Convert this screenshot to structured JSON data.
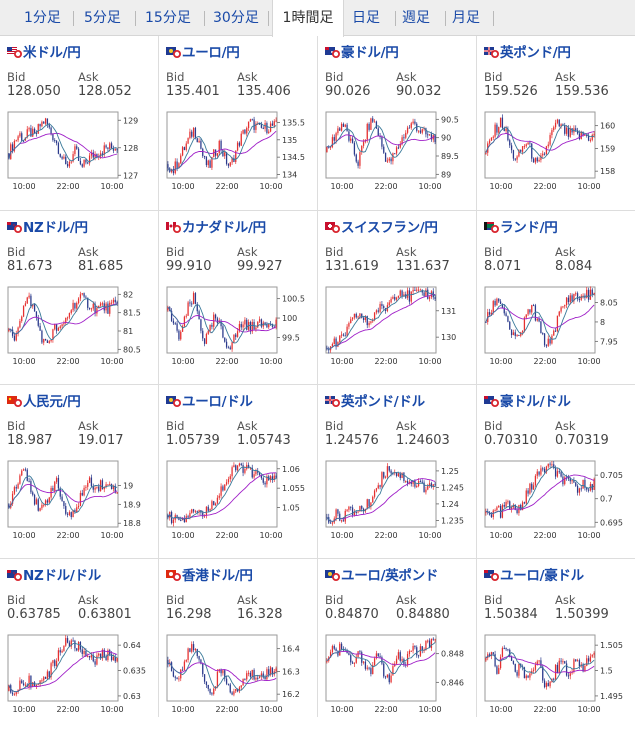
{
  "tabs": [
    {
      "label": "1分足",
      "active": false
    },
    {
      "label": "5分足",
      "active": false
    },
    {
      "label": "15分足",
      "active": false
    },
    {
      "label": "30分足",
      "active": false
    },
    {
      "label": "1時間足",
      "active": true
    },
    {
      "label": "日足",
      "active": false
    },
    {
      "label": "週足",
      "active": false
    },
    {
      "label": "月足",
      "active": false
    }
  ],
  "labels": {
    "bid": "Bid",
    "ask": "Ask"
  },
  "pairs": [
    {
      "name": "米ドル/円",
      "bid": "128.050",
      "ask": "128.052",
      "flag": "us-flag-icon",
      "chart_data": {
        "type": "candlestick",
        "yticks": [
          "129",
          "128",
          "127"
        ],
        "ylim": [
          126.9,
          129.3
        ],
        "xticks": [
          "10:00",
          "22:00",
          "10:00"
        ],
        "close": [
          127.8,
          128.2,
          128.5,
          128.3,
          128.6,
          128.4,
          128.8,
          129.0,
          128.6,
          128.3,
          127.8,
          127.3,
          127.6,
          127.9,
          127.2,
          127.5,
          127.7,
          127.8,
          127.9,
          128.0,
          128.0,
          128.05
        ]
      }
    },
    {
      "name": "ユーロ/円",
      "bid": "135.401",
      "ask": "135.406",
      "flag": "eu-flag-icon",
      "chart_data": {
        "type": "candlestick",
        "yticks": [
          "135.5",
          "135",
          "134.5",
          "134"
        ],
        "ylim": [
          133.9,
          135.8
        ],
        "xticks": [
          "10:00",
          "22:00",
          "10:00"
        ],
        "close": [
          134.3,
          134.1,
          134.4,
          134.7,
          135.0,
          135.3,
          135.0,
          134.4,
          134.2,
          134.6,
          134.9,
          134.5,
          134.2,
          134.6,
          135.0,
          135.3,
          135.5,
          135.4,
          135.3,
          135.35,
          135.4,
          135.4
        ]
      }
    },
    {
      "name": "豪ドル/円",
      "bid": "90.026",
      "ask": "90.032",
      "flag": "au-flag-icon",
      "chart_data": {
        "type": "candlestick",
        "yticks": [
          "90.5",
          "90",
          "89.5",
          "89"
        ],
        "ylim": [
          88.9,
          90.7
        ],
        "xticks": [
          "10:00",
          "22:00",
          "10:00"
        ],
        "close": [
          89.6,
          89.9,
          90.2,
          90.4,
          90.1,
          89.7,
          89.3,
          89.8,
          90.3,
          90.5,
          90.1,
          89.6,
          89.3,
          89.5,
          89.8,
          90.1,
          90.3,
          90.4,
          90.2,
          90.1,
          90.0,
          90.03
        ]
      }
    },
    {
      "name": "英ポンド/円",
      "bid": "159.526",
      "ask": "159.536",
      "flag": "gb-flag-icon",
      "chart_data": {
        "type": "candlestick",
        "yticks": [
          "160",
          "159",
          "158"
        ],
        "ylim": [
          157.7,
          160.6
        ],
        "xticks": [
          "10:00",
          "22:00",
          "10:00"
        ],
        "close": [
          158.8,
          159.4,
          159.9,
          160.2,
          159.6,
          158.8,
          158.5,
          159.0,
          159.3,
          158.7,
          158.2,
          158.6,
          159.2,
          159.8,
          160.1,
          159.8,
          159.6,
          159.7,
          159.5,
          159.6,
          159.5,
          159.53
        ]
      }
    },
    {
      "name": "NZドル/円",
      "bid": "81.673",
      "ask": "81.685",
      "flag": "nz-flag-icon",
      "chart_data": {
        "type": "candlestick",
        "yticks": [
          "82",
          "81.5",
          "81",
          "80.5"
        ],
        "ylim": [
          80.4,
          82.2
        ],
        "xticks": [
          "10:00",
          "22:00",
          "10:00"
        ],
        "close": [
          81.0,
          80.8,
          81.3,
          81.7,
          81.9,
          81.5,
          81.0,
          80.6,
          80.8,
          81.1,
          81.0,
          81.3,
          81.6,
          81.8,
          81.9,
          81.8,
          81.7,
          81.6,
          81.7,
          81.6,
          81.7,
          81.67
        ]
      }
    },
    {
      "name": "カナダドル/円",
      "bid": "99.910",
      "ask": "99.927",
      "flag": "ca-flag-icon",
      "chart_data": {
        "type": "candlestick",
        "yticks": [
          "100.5",
          "100",
          "99.5"
        ],
        "ylim": [
          99.1,
          100.8
        ],
        "xticks": [
          "10:00",
          "22:00",
          "10:00"
        ],
        "close": [
          100.2,
          99.9,
          99.5,
          99.8,
          100.3,
          100.5,
          100.0,
          99.4,
          99.6,
          100.0,
          99.8,
          99.4,
          99.3,
          99.5,
          99.8,
          99.9,
          99.7,
          99.9,
          99.8,
          99.9,
          99.9,
          99.91
        ]
      }
    },
    {
      "name": "スイスフラン/円",
      "bid": "131.619",
      "ask": "131.637",
      "flag": "ch-flag-icon",
      "chart_data": {
        "type": "candlestick",
        "yticks": [
          "131",
          "130"
        ],
        "ylim": [
          129.4,
          131.9
        ],
        "xticks": [
          "10:00",
          "22:00",
          "10:00"
        ],
        "close": [
          129.6,
          129.8,
          129.7,
          130.0,
          130.3,
          130.6,
          130.9,
          130.7,
          130.5,
          130.8,
          131.1,
          131.0,
          131.3,
          131.6,
          131.8,
          131.7,
          131.5,
          131.7,
          131.6,
          131.7,
          131.6,
          131.62
        ]
      }
    },
    {
      "name": "ランド/円",
      "bid": "8.071",
      "ask": "8.084",
      "flag": "za-flag-icon",
      "chart_data": {
        "type": "candlestick",
        "yticks": [
          "8.05",
          "8",
          "7.95"
        ],
        "ylim": [
          7.92,
          8.09
        ],
        "xticks": [
          "10:00",
          "22:00",
          "10:00"
        ],
        "close": [
          8.0,
          8.03,
          8.06,
          8.05,
          8.01,
          7.97,
          7.95,
          7.98,
          8.02,
          8.04,
          8.0,
          7.96,
          7.94,
          7.97,
          8.01,
          8.04,
          8.06,
          8.07,
          8.06,
          8.07,
          8.07,
          8.071
        ]
      }
    },
    {
      "name": "人民元/円",
      "bid": "18.987",
      "ask": "19.017",
      "flag": "cn-flag-icon",
      "chart_data": {
        "type": "candlestick",
        "yticks": [
          "19",
          "18.9",
          "18.8"
        ],
        "ylim": [
          18.78,
          19.13
        ],
        "xticks": [
          "10:00",
          "22:00",
          "10:00"
        ],
        "close": [
          18.9,
          18.98,
          19.05,
          19.1,
          19.02,
          18.92,
          18.85,
          18.9,
          18.97,
          19.03,
          18.95,
          18.86,
          18.82,
          18.88,
          18.95,
          19.0,
          19.02,
          18.99,
          19.01,
          18.99,
          19.0,
          18.987
        ]
      }
    },
    {
      "name": "ユーロ/ドル",
      "bid": "1.05739",
      "ask": "1.05743",
      "flag": "eu-flag-icon",
      "chart_data": {
        "type": "candlestick",
        "yticks": [
          "1.06",
          "1.055",
          "1.05"
        ],
        "ylim": [
          1.045,
          1.062
        ],
        "xticks": [
          "10:00",
          "22:00",
          "10:00"
        ],
        "close": [
          1.048,
          1.047,
          1.048,
          1.047,
          1.049,
          1.05,
          1.049,
          1.048,
          1.05,
          1.052,
          1.054,
          1.056,
          1.058,
          1.06,
          1.061,
          1.06,
          1.059,
          1.058,
          1.058,
          1.057,
          1.057,
          1.0574
        ]
      }
    },
    {
      "name": "英ポンド/ドル",
      "bid": "1.24576",
      "ask": "1.24603",
      "flag": "gb-flag-icon",
      "chart_data": {
        "type": "candlestick",
        "yticks": [
          "1.25",
          "1.245",
          "1.24",
          "1.235"
        ],
        "ylim": [
          1.233,
          1.253
        ],
        "xticks": [
          "10:00",
          "22:00",
          "10:00"
        ],
        "close": [
          1.236,
          1.235,
          1.237,
          1.236,
          1.238,
          1.237,
          1.239,
          1.238,
          1.24,
          1.243,
          1.246,
          1.249,
          1.251,
          1.25,
          1.249,
          1.248,
          1.247,
          1.246,
          1.246,
          1.245,
          1.246,
          1.2458
        ]
      }
    },
    {
      "name": "豪ドル/ドル",
      "bid": "0.70310",
      "ask": "0.70319",
      "flag": "au-flag-icon",
      "chart_data": {
        "type": "candlestick",
        "yticks": [
          "0.705",
          "0.7",
          "0.695"
        ],
        "ylim": [
          0.694,
          0.708
        ],
        "xticks": [
          "10:00",
          "22:00",
          "10:00"
        ],
        "close": [
          0.697,
          0.696,
          0.698,
          0.697,
          0.699,
          0.698,
          0.697,
          0.699,
          0.701,
          0.703,
          0.705,
          0.706,
          0.707,
          0.706,
          0.705,
          0.704,
          0.703,
          0.703,
          0.702,
          0.703,
          0.703,
          0.7031
        ]
      }
    },
    {
      "name": "NZドル/ドル",
      "bid": "0.63785",
      "ask": "0.63801",
      "flag": "nz-flag-icon",
      "chart_data": {
        "type": "candlestick",
        "yticks": [
          "0.64",
          "0.635",
          "0.63"
        ],
        "ylim": [
          0.629,
          0.642
        ],
        "xticks": [
          "10:00",
          "22:00",
          "10:00"
        ],
        "close": [
          0.631,
          0.63,
          0.632,
          0.631,
          0.633,
          0.632,
          0.634,
          0.633,
          0.635,
          0.637,
          0.639,
          0.641,
          0.64,
          0.64,
          0.639,
          0.638,
          0.638,
          0.637,
          0.638,
          0.638,
          0.638,
          0.6379
        ]
      }
    },
    {
      "name": "香港ドル/円",
      "bid": "16.298",
      "ask": "16.328",
      "flag": "hk-flag-icon",
      "chart_data": {
        "type": "candlestick",
        "yticks": [
          "16.4",
          "16.3",
          "16.2"
        ],
        "ylim": [
          16.17,
          16.46
        ],
        "xticks": [
          "10:00",
          "22:00",
          "10:00"
        ],
        "close": [
          16.35,
          16.3,
          16.26,
          16.33,
          16.38,
          16.41,
          16.35,
          16.27,
          16.21,
          16.24,
          16.3,
          16.27,
          16.22,
          16.2,
          16.24,
          16.27,
          16.29,
          16.28,
          16.3,
          16.29,
          16.3,
          16.298
        ]
      }
    },
    {
      "name": "ユーロ/英ポンド",
      "bid": "0.84870",
      "ask": "0.84880",
      "flag": "eu-flag-icon",
      "chart_data": {
        "type": "candlestick",
        "yticks": [
          "0.848",
          "0.846"
        ],
        "ylim": [
          0.8447,
          0.8493
        ],
        "xticks": [
          "10:00",
          "22:00",
          "10:00"
        ],
        "close": [
          0.8475,
          0.8485,
          0.848,
          0.8488,
          0.8478,
          0.847,
          0.8482,
          0.8476,
          0.8465,
          0.8472,
          0.848,
          0.8468,
          0.846,
          0.847,
          0.8478,
          0.8473,
          0.848,
          0.8484,
          0.848,
          0.8487,
          0.8486,
          0.8487
        ]
      }
    },
    {
      "name": "ユーロ/豪ドル",
      "bid": "1.50384",
      "ask": "1.50399",
      "flag": "au-flag-icon",
      "chart_data": {
        "type": "candlestick",
        "yticks": [
          "1.505",
          "1.5",
          "1.495"
        ],
        "ylim": [
          1.494,
          1.507
        ],
        "xticks": [
          "10:00",
          "22:00",
          "10:00"
        ],
        "close": [
          1.502,
          1.504,
          1.5,
          1.503,
          1.505,
          1.501,
          1.499,
          1.502,
          1.497,
          1.5,
          1.503,
          1.499,
          1.496,
          1.499,
          1.501,
          1.502,
          1.499,
          1.501,
          1.502,
          1.5,
          1.503,
          1.5038
        ]
      }
    }
  ],
  "colors": {
    "up": "#e53030",
    "down": "#2b3a8c",
    "ma_long": "#a020c8",
    "ma_short": "#3a7a9a",
    "link": "#1a4aa8"
  }
}
